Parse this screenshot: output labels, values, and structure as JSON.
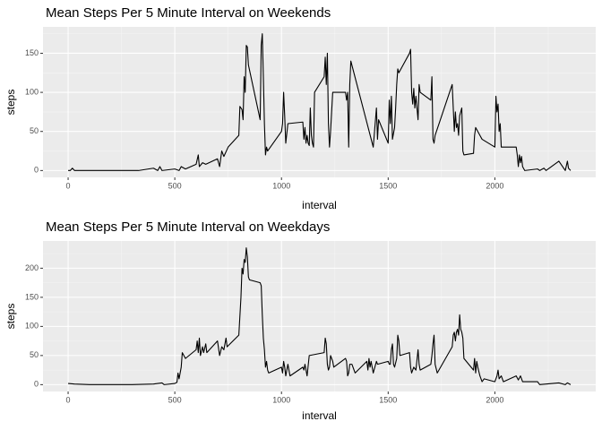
{
  "chart_data": [
    {
      "type": "line",
      "title": "Mean Steps Per 5 Minute Interval on Weekends",
      "xlabel": "interval",
      "ylabel": "steps",
      "xlim": [
        -117.75,
        2472.75
      ],
      "ylim": [
        -8.75,
        183.75
      ],
      "xticks": [
        0,
        500,
        1000,
        1500,
        2000
      ],
      "yticks": [
        0,
        50,
        100,
        150
      ],
      "x_minor_breaks": [
        250,
        750,
        1250,
        1750,
        2250
      ],
      "y_minor_breaks": [
        25,
        75,
        125,
        175
      ],
      "grid": true,
      "color": "#000000",
      "x": [
        0,
        10,
        20,
        30,
        100,
        200,
        300,
        330,
        400,
        420,
        430,
        440,
        500,
        520,
        530,
        550,
        600,
        610,
        615,
        630,
        645,
        700,
        710,
        720,
        730,
        750,
        800,
        805,
        815,
        820,
        825,
        830,
        835,
        840,
        845,
        900,
        905,
        910,
        915,
        920,
        925,
        930,
        935,
        1000,
        1005,
        1010,
        1015,
        1020,
        1030,
        1100,
        1105,
        1110,
        1115,
        1120,
        1125,
        1130,
        1135,
        1140,
        1145,
        1150,
        1155,
        1200,
        1205,
        1210,
        1215,
        1220,
        1225,
        1230,
        1240,
        1300,
        1305,
        1310,
        1315,
        1320,
        1325,
        1430,
        1445,
        1450,
        1455,
        1500,
        1505,
        1510,
        1515,
        1520,
        1530,
        1535,
        1540,
        1545,
        1550,
        1600,
        1605,
        1610,
        1615,
        1620,
        1625,
        1630,
        1640,
        1645,
        1650,
        1700,
        1705,
        1710,
        1715,
        1720,
        1800,
        1805,
        1810,
        1815,
        1820,
        1825,
        1830,
        1835,
        1840,
        1845,
        1850,
        1855,
        1900,
        1905,
        1910,
        1930,
        1940,
        2000,
        2005,
        2010,
        2015,
        2020,
        2025,
        2030,
        2100,
        2105,
        2110,
        2115,
        2120,
        2125,
        2130,
        2140,
        2200,
        2210,
        2230,
        2240,
        2300,
        2330,
        2340,
        2345,
        2355
      ],
      "values": [
        0,
        0,
        3,
        0,
        0,
        0,
        0,
        0,
        3,
        0,
        5,
        0,
        2,
        0,
        5,
        2,
        8,
        20,
        5,
        10,
        8,
        15,
        5,
        25,
        18,
        30,
        45,
        82,
        78,
        65,
        120,
        100,
        160,
        158,
        135,
        65,
        160,
        175,
        120,
        60,
        20,
        30,
        25,
        50,
        60,
        100,
        70,
        35,
        60,
        62,
        40,
        55,
        35,
        45,
        35,
        32,
        80,
        45,
        35,
        30,
        100,
        120,
        145,
        110,
        150,
        60,
        30,
        50,
        100,
        100,
        90,
        100,
        30,
        110,
        140,
        30,
        80,
        40,
        65,
        35,
        90,
        60,
        95,
        40,
        55,
        80,
        110,
        130,
        125,
        150,
        155,
        100,
        85,
        105,
        80,
        95,
        65,
        110,
        100,
        90,
        120,
        40,
        35,
        45,
        110,
        80,
        50,
        75,
        55,
        60,
        45,
        70,
        75,
        80,
        25,
        20,
        22,
        45,
        55,
        45,
        40,
        30,
        95,
        75,
        85,
        50,
        60,
        30,
        30,
        20,
        5,
        20,
        10,
        18,
        5,
        0,
        2,
        0,
        3,
        0,
        12,
        0,
        12,
        3,
        0
      ]
    },
    {
      "type": "line",
      "title": "Mean Steps Per 5 Minute Interval on Weekdays",
      "xlabel": "interval",
      "ylabel": "steps",
      "xlim": [
        -117.75,
        2472.75
      ],
      "ylim": [
        -11.75,
        246.75
      ],
      "xticks": [
        0,
        500,
        1000,
        1500,
        2000
      ],
      "yticks": [
        0,
        50,
        100,
        150,
        200
      ],
      "x_minor_breaks": [
        250,
        750,
        1250,
        1750,
        2250
      ],
      "y_minor_breaks": [
        25,
        75,
        125,
        175,
        225
      ],
      "grid": true,
      "color": "#000000",
      "x": [
        0,
        30,
        100,
        200,
        300,
        400,
        440,
        450,
        500,
        510,
        515,
        520,
        530,
        535,
        550,
        600,
        605,
        610,
        615,
        620,
        630,
        635,
        645,
        650,
        700,
        710,
        720,
        730,
        740,
        745,
        800,
        810,
        815,
        820,
        825,
        830,
        835,
        840,
        845,
        850,
        900,
        905,
        910,
        915,
        920,
        925,
        930,
        935,
        940,
        1000,
        1005,
        1010,
        1015,
        1020,
        1030,
        1040,
        1100,
        1105,
        1110,
        1120,
        1130,
        1200,
        1205,
        1210,
        1215,
        1220,
        1225,
        1230,
        1240,
        1245,
        1300,
        1305,
        1310,
        1315,
        1320,
        1330,
        1345,
        1400,
        1405,
        1410,
        1415,
        1420,
        1430,
        1445,
        1450,
        1500,
        1505,
        1510,
        1515,
        1520,
        1525,
        1530,
        1540,
        1545,
        1550,
        1555,
        1600,
        1605,
        1610,
        1620,
        1630,
        1640,
        1645,
        1650,
        1700,
        1705,
        1710,
        1715,
        1720,
        1730,
        1800,
        1805,
        1810,
        1815,
        1820,
        1825,
        1830,
        1835,
        1840,
        1845,
        1850,
        1855,
        1900,
        1905,
        1910,
        1915,
        1920,
        1930,
        1940,
        1950,
        2000,
        2005,
        2010,
        2015,
        2020,
        2030,
        2040,
        2100,
        2110,
        2120,
        2130,
        2200,
        2210,
        2300,
        2330,
        2340,
        2355
      ],
      "values": [
        2,
        1,
        0,
        0,
        0,
        1,
        3,
        0,
        2,
        4,
        20,
        10,
        30,
        55,
        45,
        60,
        75,
        55,
        80,
        50,
        65,
        55,
        70,
        55,
        75,
        50,
        65,
        60,
        80,
        65,
        85,
        150,
        200,
        190,
        215,
        210,
        235,
        220,
        185,
        180,
        175,
        170,
        120,
        80,
        60,
        30,
        40,
        25,
        20,
        30,
        20,
        40,
        30,
        15,
        35,
        15,
        30,
        25,
        35,
        15,
        50,
        55,
        80,
        70,
        35,
        25,
        30,
        50,
        40,
        30,
        45,
        40,
        15,
        20,
        35,
        35,
        20,
        40,
        25,
        45,
        30,
        40,
        20,
        40,
        35,
        40,
        35,
        35,
        60,
        70,
        35,
        30,
        45,
        85,
        75,
        50,
        55,
        30,
        20,
        30,
        25,
        60,
        35,
        25,
        35,
        50,
        70,
        85,
        35,
        20,
        65,
        85,
        90,
        75,
        90,
        95,
        85,
        120,
        95,
        90,
        80,
        45,
        25,
        45,
        20,
        40,
        30,
        15,
        5,
        10,
        5,
        10,
        15,
        25,
        10,
        15,
        5,
        15,
        8,
        15,
        5,
        5,
        0,
        3,
        0,
        3,
        0
      ]
    }
  ]
}
